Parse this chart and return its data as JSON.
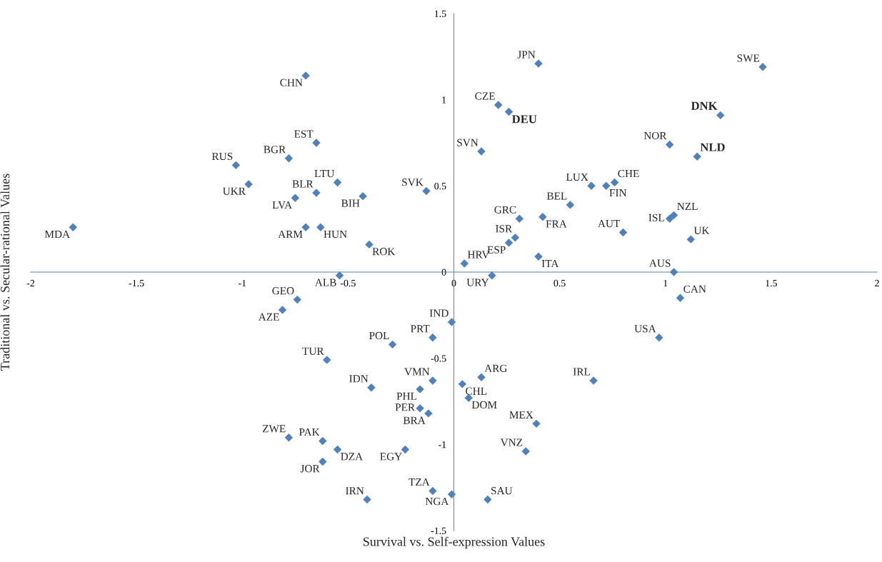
{
  "chart_data": {
    "type": "scatter",
    "xlabel": "Survival vs. Self-expression Values",
    "ylabel": "Traditional vs. Secular-rational Values",
    "xlim": [
      -2,
      2
    ],
    "ylim": [
      -1.5,
      1.5
    ],
    "xticks": [
      -2,
      -1.5,
      -1,
      -0.5,
      0,
      0.5,
      1,
      1.5,
      2
    ],
    "yticks": [
      -1.5,
      -1,
      -0.5,
      0,
      0.5,
      1,
      1.5
    ],
    "grid": false,
    "legend": false,
    "marker": "diamond",
    "series": [
      {
        "color": "#4f81bd",
        "x": [
          -1.8,
          -0.7,
          -0.65,
          -0.78,
          -1.03,
          -0.97,
          -0.55,
          -0.65,
          -0.75,
          -0.43,
          -0.13,
          -0.7,
          -0.63,
          -0.4,
          -0.54,
          0.05,
          0.18,
          0.4,
          0.21,
          0.13,
          1.46,
          1.02,
          0.65,
          0.72,
          0.76,
          0.55,
          0.31,
          0.42,
          0.29,
          0.26,
          0.4,
          0.8,
          1.02,
          1.04,
          1.12,
          1.04,
          1.07,
          0.97,
          0.66,
          -0.01,
          -0.1,
          -0.29,
          -0.74,
          -0.81,
          -0.6,
          -0.39,
          -0.1,
          -0.16,
          0.04,
          0.13,
          0.07,
          -0.16,
          -0.12,
          0.39,
          0.34,
          -0.78,
          -0.62,
          -0.55,
          -0.23,
          -0.62,
          -0.41,
          -0.1,
          -0.01,
          0.16
        ],
        "values": [
          0.26,
          1.14,
          0.75,
          0.66,
          0.62,
          0.51,
          0.52,
          0.46,
          0.43,
          0.44,
          0.47,
          0.26,
          0.26,
          0.16,
          -0.02,
          0.05,
          -0.02,
          1.21,
          0.97,
          0.7,
          1.19,
          0.74,
          0.5,
          0.5,
          0.52,
          0.39,
          0.31,
          0.32,
          0.2,
          0.17,
          0.09,
          0.23,
          0.31,
          0.33,
          0.19,
          0.0,
          -0.15,
          -0.38,
          -0.63,
          -0.29,
          -0.38,
          -0.42,
          -0.16,
          -0.22,
          -0.51,
          -0.67,
          -0.63,
          -0.68,
          -0.65,
          -0.61,
          -0.73,
          -0.79,
          -0.82,
          -0.88,
          -1.04,
          -0.96,
          -0.98,
          -1.03,
          -1.03,
          -1.1,
          -1.32,
          -1.27,
          -1.29,
          -1.32
        ],
        "value_labels": [
          "MDA",
          "CHN",
          "EST",
          "BGR",
          "RUS",
          "UKR",
          "LTU",
          "BLR",
          "LVA",
          "BIH",
          "SVK",
          "ARM",
          "HUN",
          "ROK",
          "ALB",
          "HRV",
          "URY",
          "JPN",
          "CZE",
          "SVN",
          "SWE",
          "NOR",
          "LUX",
          "FIN",
          "CHE",
          "BEL",
          "GRC",
          "FRA",
          "ISR",
          "ESP",
          "ITA",
          "AUT",
          "ISL",
          "NZL",
          "UK",
          "AUS",
          "CAN",
          "USA",
          "IRL",
          "IND",
          "PRT",
          "POL",
          "GEO",
          "AZE",
          "TUR",
          "IDN",
          "VMN",
          "PHL",
          "CHL",
          "ARG",
          "DOM",
          "PER",
          "BRA",
          "MEX",
          "VNZ",
          "ZWE",
          "PAK",
          "DZA",
          "EGY",
          "JOR",
          "IRN",
          "TZA",
          "NGA",
          "SAU"
        ]
      },
      {
        "color": "#4f81bd",
        "x": [
          0.26,
          1.26,
          1.15
        ],
        "values": [
          0.93,
          0.91,
          0.67
        ],
        "value_labels": [
          "DEU",
          "DNK",
          "NLD"
        ]
      }
    ]
  }
}
